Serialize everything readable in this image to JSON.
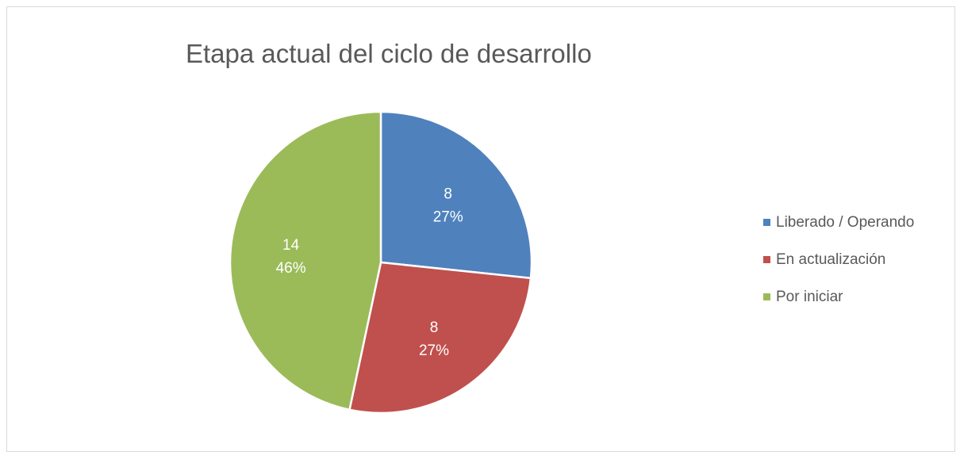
{
  "chart_data": {
    "type": "pie",
    "title": "Etapa actual del ciclo de desarrollo",
    "categories": [
      "Liberado / Operando",
      "En actualización",
      "Por iniciar"
    ],
    "values": [
      8,
      8,
      14
    ],
    "percent_labels": [
      "27%",
      "27%",
      "46%"
    ],
    "colors": [
      "#4f81bd",
      "#c0504d",
      "#9bbb59"
    ],
    "legend_position": "right",
    "start_angle": "12 o'clock",
    "direction": "clockwise"
  }
}
